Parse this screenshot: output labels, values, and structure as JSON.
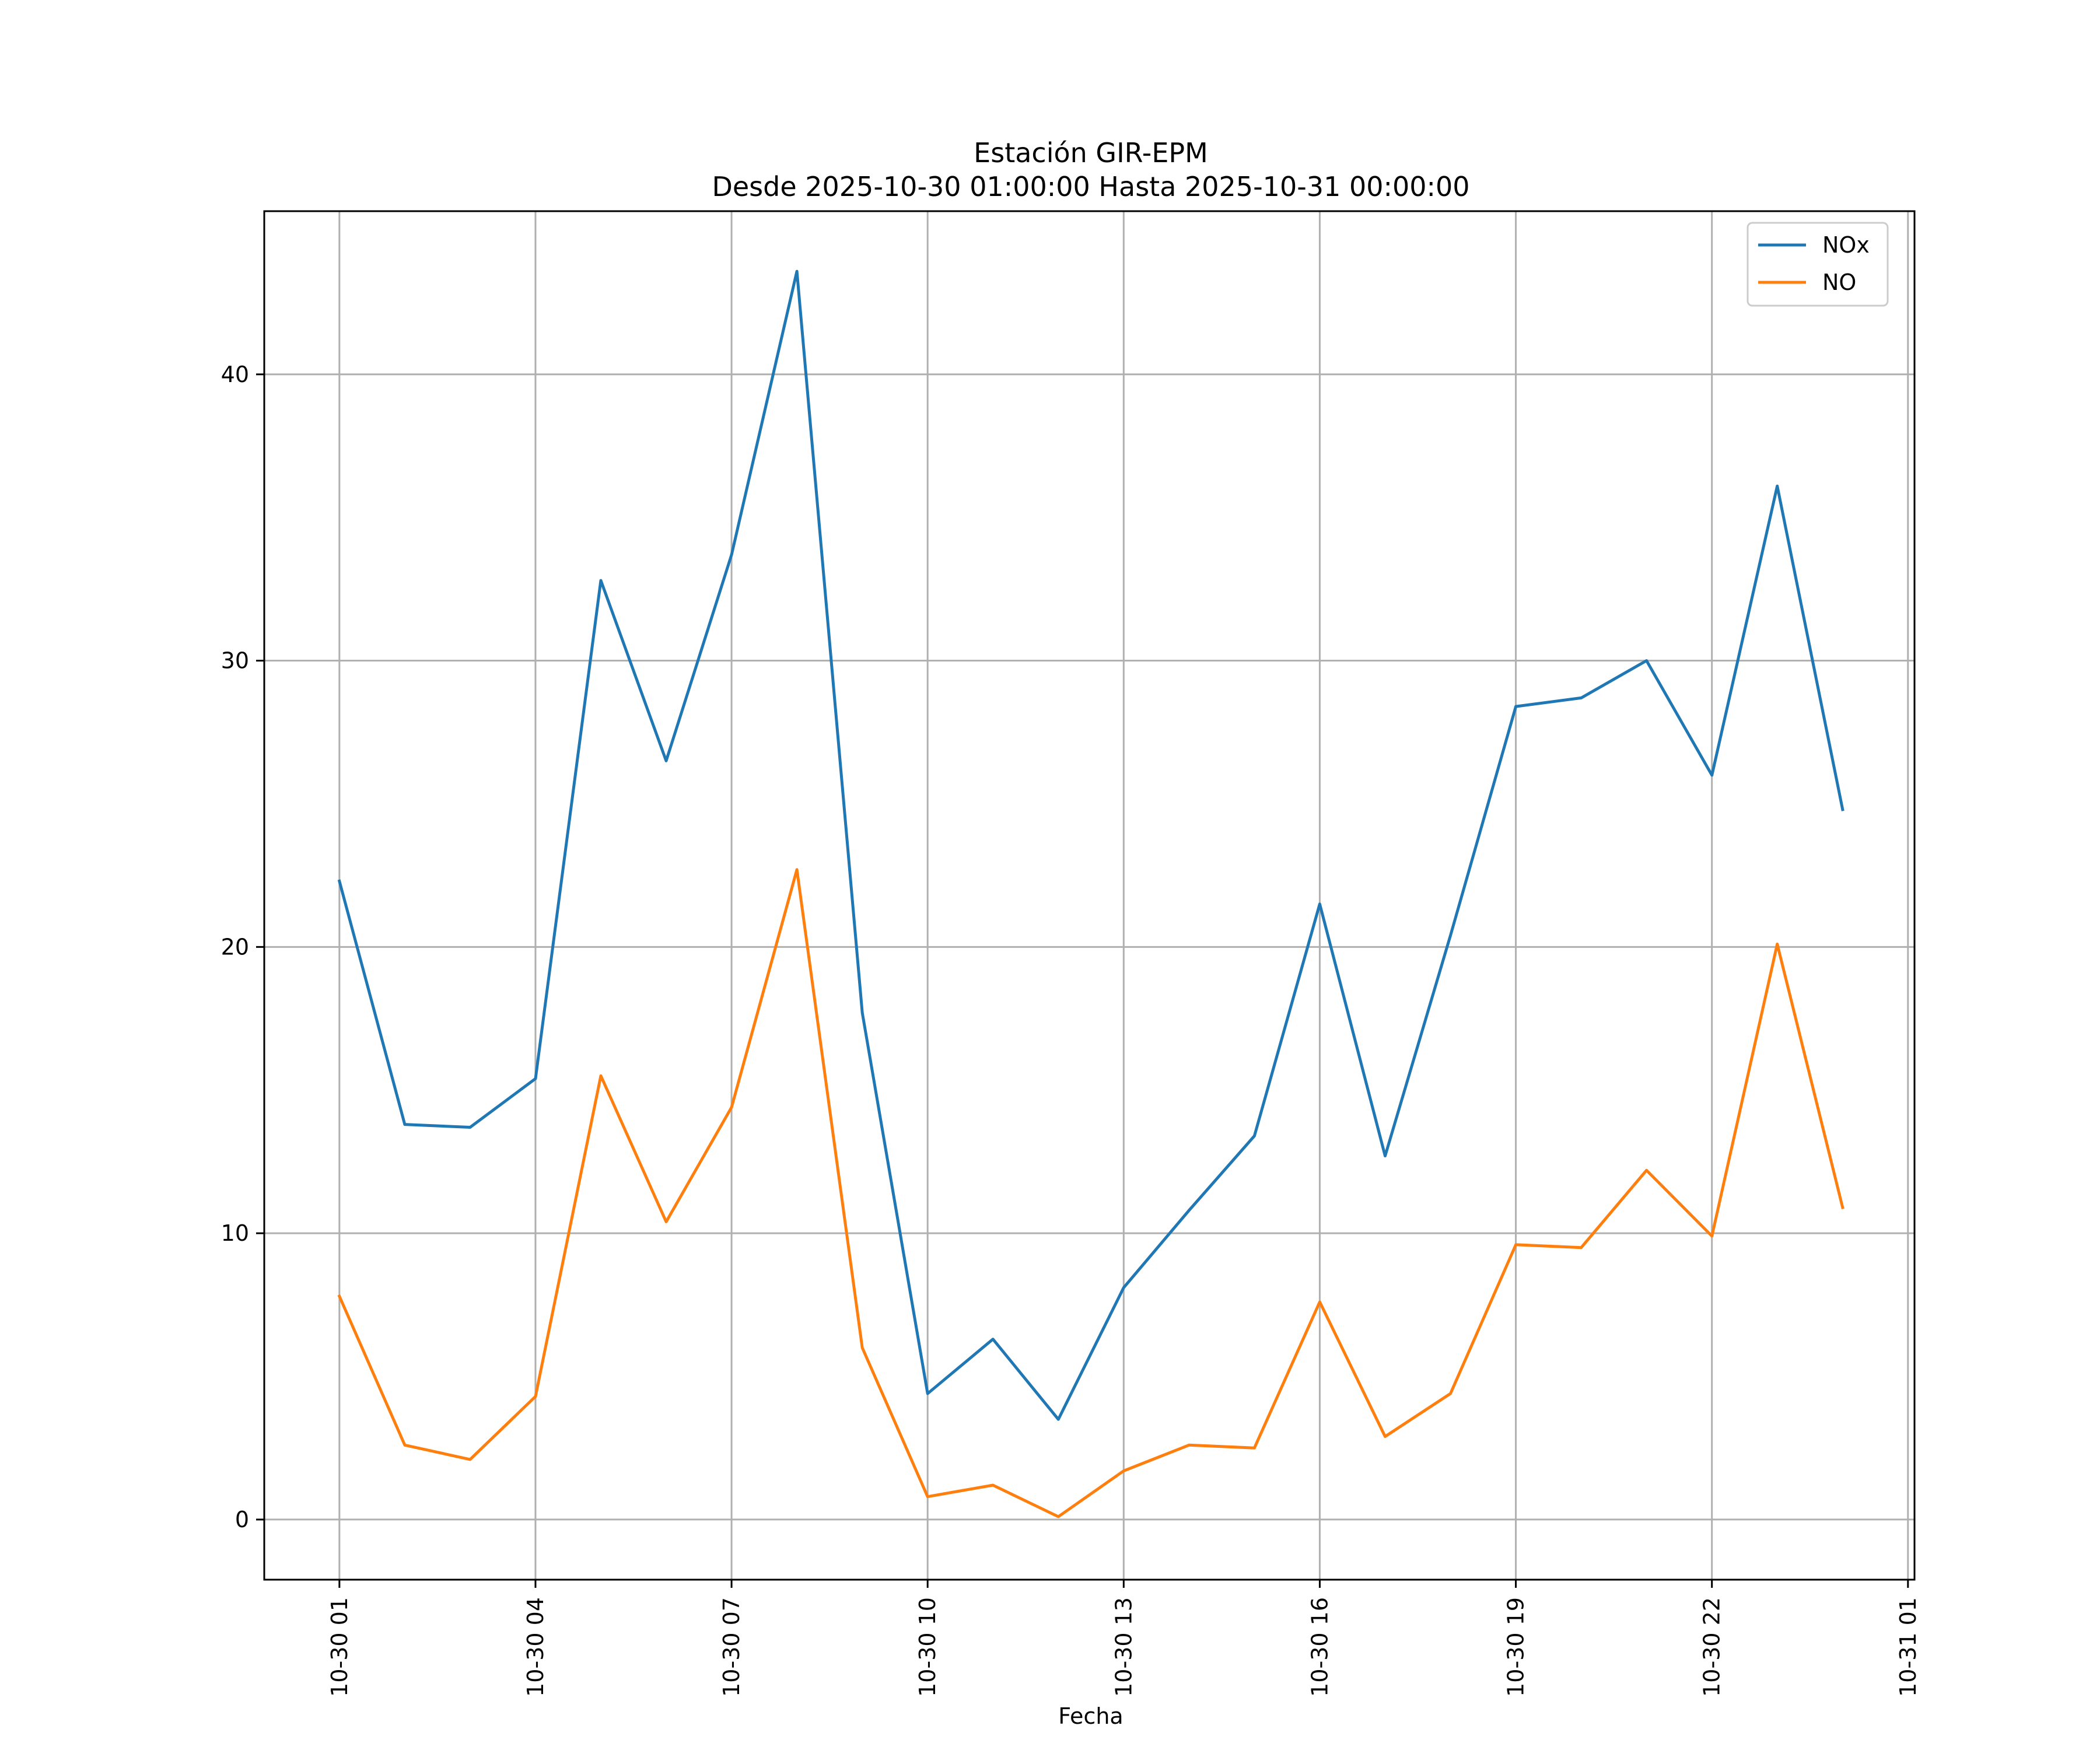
{
  "chart_data": {
    "type": "line",
    "title_line1": "Estación GIR-EPM",
    "title_line2": "Desde 2025-10-30 01:00:00 Hasta 2025-10-31 00:00:00",
    "xlabel": "Fecha",
    "ylabel": "",
    "x_hours": [
      1,
      2,
      3,
      4,
      5,
      6,
      7,
      8,
      9,
      10,
      11,
      12,
      13,
      14,
      15,
      16,
      17,
      18,
      19,
      20,
      21,
      22,
      23,
      24
    ],
    "x_ticks": [
      {
        "hour": 1,
        "label": "10-30 01"
      },
      {
        "hour": 4,
        "label": "10-30 04"
      },
      {
        "hour": 7,
        "label": "10-30 07"
      },
      {
        "hour": 10,
        "label": "10-30 10"
      },
      {
        "hour": 13,
        "label": "10-30 13"
      },
      {
        "hour": 16,
        "label": "10-30 16"
      },
      {
        "hour": 19,
        "label": "10-30 19"
      },
      {
        "hour": 22,
        "label": "10-30 22"
      },
      {
        "hour": 25,
        "label": "10-31 01"
      }
    ],
    "xlim": [
      -0.15,
      25.1
    ],
    "ylim": [
      -2.1,
      45.7
    ],
    "y_ticks": [
      0,
      10,
      20,
      30,
      40
    ],
    "grid": true,
    "legend_position": "top-right",
    "series": [
      {
        "name": "NOx",
        "color": "#1f77b4",
        "values": [
          22.3,
          13.8,
          13.7,
          15.4,
          32.8,
          26.5,
          33.7,
          43.6,
          17.7,
          4.4,
          6.3,
          3.5,
          8.1,
          10.8,
          13.4,
          21.5,
          12.7,
          20.4,
          28.4,
          28.7,
          30.0,
          26.0,
          36.1,
          24.8
        ]
      },
      {
        "name": "NO",
        "color": "#ff7f0e",
        "values": [
          7.8,
          2.6,
          2.1,
          4.3,
          15.5,
          10.4,
          14.4,
          22.7,
          6.0,
          0.8,
          1.2,
          0.1,
          1.7,
          2.6,
          2.5,
          7.6,
          2.9,
          4.4,
          9.6,
          9.5,
          12.2,
          9.9,
          20.1,
          10.9
        ]
      }
    ]
  }
}
